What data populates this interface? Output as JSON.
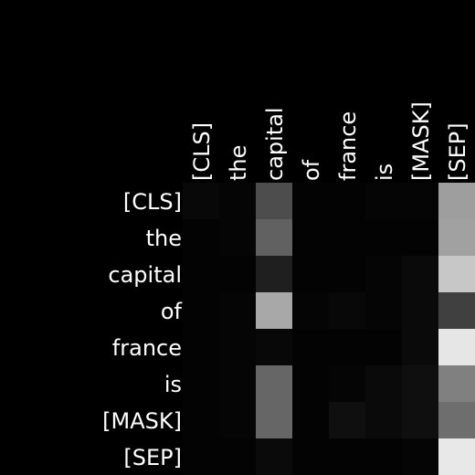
{
  "chart_data": {
    "type": "heatmap",
    "colormap": "gray",
    "background": "#000000",
    "x_tokens": [
      "[CLS]",
      "the",
      "capital",
      "of",
      "france",
      "is",
      "[MASK]",
      "[SEP]"
    ],
    "y_tokens": [
      "[CLS]",
      "the",
      "capital",
      "of",
      "france",
      "is",
      "[MASK]",
      "[SEP]"
    ],
    "value_range": [
      0,
      1
    ],
    "values": [
      [
        0.03,
        0.02,
        0.3,
        0.01,
        0.01,
        0.02,
        0.02,
        0.62
      ],
      [
        0.01,
        0.02,
        0.38,
        0.01,
        0.01,
        0.01,
        0.01,
        0.63
      ],
      [
        0.01,
        0.01,
        0.12,
        0.01,
        0.01,
        0.02,
        0.04,
        0.78
      ],
      [
        0.01,
        0.02,
        0.66,
        0.02,
        0.03,
        0.02,
        0.04,
        0.25
      ],
      [
        0.01,
        0.02,
        0.03,
        0.01,
        0.01,
        0.01,
        0.04,
        0.9
      ],
      [
        0.01,
        0.02,
        0.4,
        0.01,
        0.02,
        0.04,
        0.06,
        0.5
      ],
      [
        0.01,
        0.02,
        0.4,
        0.01,
        0.06,
        0.04,
        0.06,
        0.43
      ],
      [
        0.01,
        0.01,
        0.04,
        0.01,
        0.01,
        0.01,
        0.02,
        0.91
      ]
    ]
  }
}
